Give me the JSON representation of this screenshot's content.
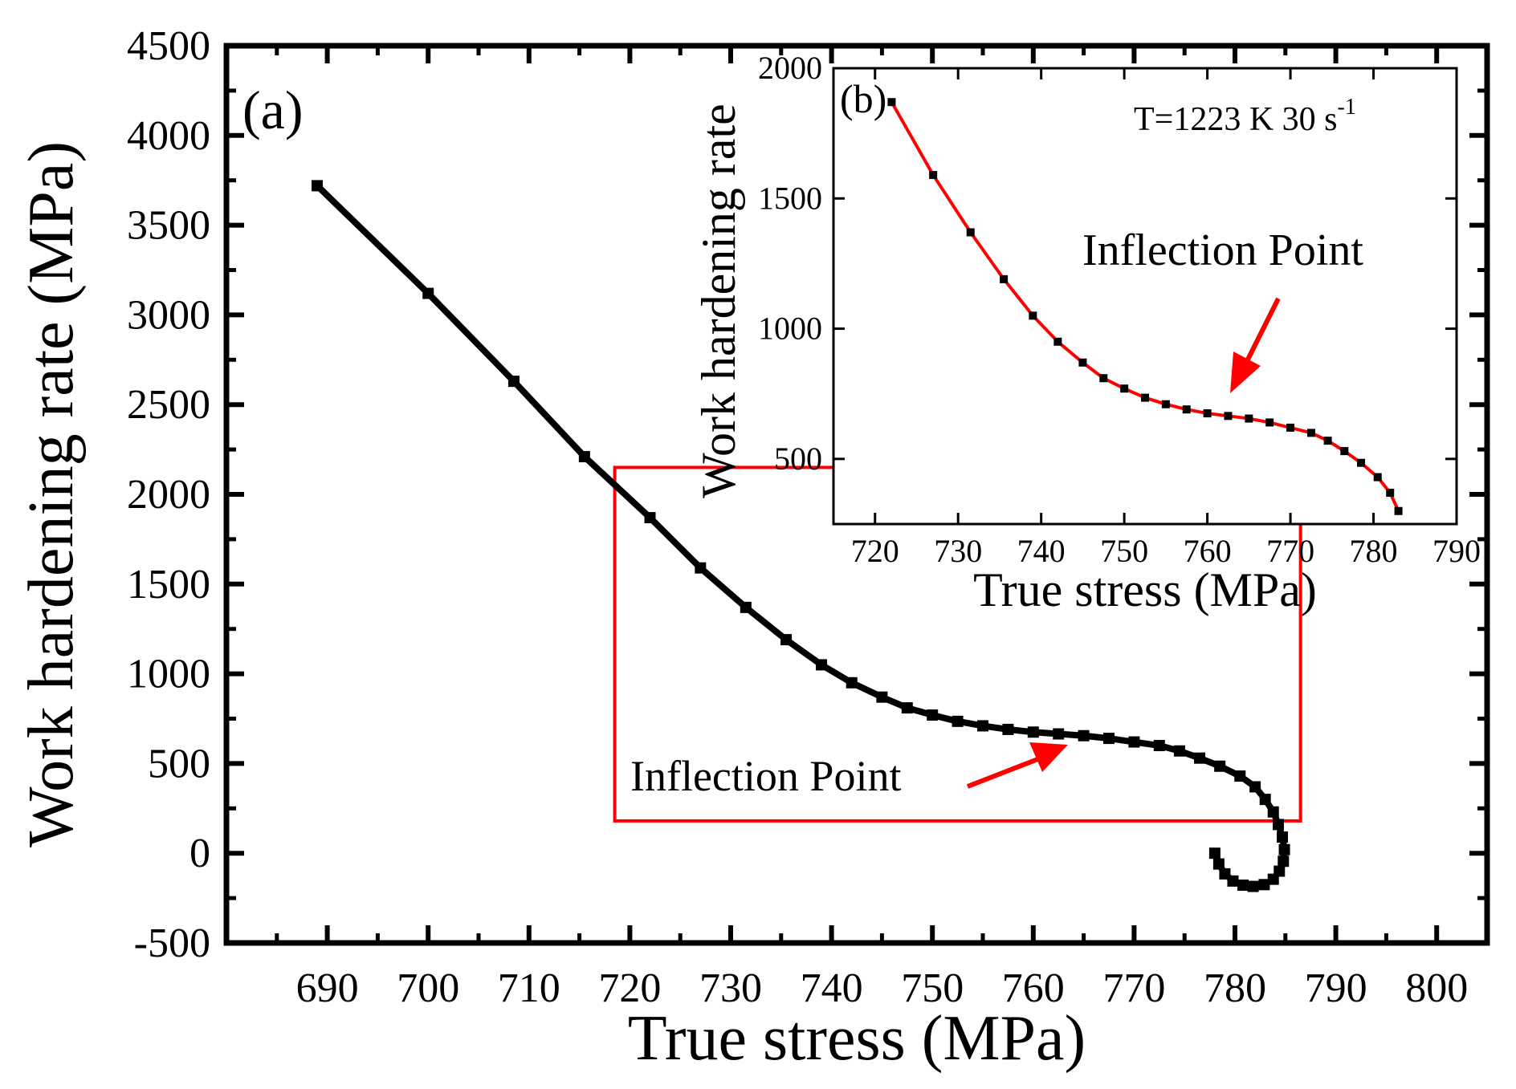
{
  "chart_data": [
    {
      "panel": "(a)",
      "type": "scatter",
      "xlabel": "True stress (MPa)",
      "ylabel": "Work hardening rate (MPa)",
      "xlim": [
        680,
        805
      ],
      "ylim": [
        -500,
        4500
      ],
      "xticks": [
        690,
        700,
        710,
        720,
        730,
        740,
        750,
        760,
        770,
        780,
        790,
        800
      ],
      "yticks": [
        -500,
        0,
        500,
        1000,
        1500,
        2000,
        2500,
        3000,
        3500,
        4000,
        4500
      ],
      "annotation": "Inflection Point",
      "series": [
        {
          "name": "Work hardening rate",
          "color": "#000000",
          "x": [
            689.0,
            700.0,
            708.5,
            715.5,
            722.0,
            727.0,
            731.5,
            735.5,
            739.0,
            742.0,
            745.0,
            747.5,
            750.0,
            752.5,
            755.0,
            757.5,
            760.0,
            762.5,
            765.0,
            767.5,
            770.0,
            772.5,
            774.5,
            776.5,
            778.5,
            780.5,
            782.0,
            783.0,
            783.8,
            784.3,
            784.7,
            784.9,
            784.8,
            784.4,
            783.8,
            782.9,
            781.8,
            780.8,
            779.8,
            779.0,
            778.4,
            778.0
          ],
          "y": [
            3720,
            3120,
            2630,
            2210,
            1870,
            1590,
            1370,
            1190,
            1050,
            950,
            870,
            810,
            770,
            735,
            710,
            690,
            675,
            665,
            655,
            640,
            620,
            600,
            570,
            530,
            485,
            430,
            370,
            300,
            230,
            160,
            90,
            20,
            -45,
            -100,
            -145,
            -175,
            -185,
            -178,
            -155,
            -115,
            -60,
            0
          ]
        }
      ],
      "highlight_box": {
        "x_range": [
          718.5,
          786.5
        ],
        "y_range": [
          180,
          2150
        ]
      }
    },
    {
      "panel": "(b)",
      "type": "line",
      "xlabel": "True stress (MPa)",
      "ylabel": "Work hardening rate",
      "xlim": [
        715,
        790
      ],
      "ylim": [
        250,
        2000
      ],
      "xticks": [
        720,
        730,
        740,
        750,
        760,
        770,
        780,
        790
      ],
      "yticks": [
        500,
        1000,
        1500,
        2000
      ],
      "condition_text": "T=1223 K   30 s",
      "condition_exp": "-1",
      "annotation": "Inflection Point",
      "series": [
        {
          "name": "Work hardening rate",
          "color": "#000000",
          "marker_color": "#000000",
          "fit_color": "#ff0000",
          "x": [
            722.0,
            727.0,
            731.5,
            735.5,
            739.0,
            742.0,
            745.0,
            747.5,
            750.0,
            752.5,
            755.0,
            757.5,
            760.0,
            762.5,
            765.0,
            767.5,
            770.0,
            772.5,
            774.5,
            776.5,
            778.5,
            780.5,
            782.0,
            783.0
          ],
          "y": [
            1870,
            1590,
            1370,
            1190,
            1050,
            950,
            870,
            810,
            770,
            735,
            710,
            690,
            675,
            665,
            655,
            640,
            620,
            600,
            570,
            530,
            485,
            430,
            370,
            300
          ]
        }
      ]
    }
  ]
}
